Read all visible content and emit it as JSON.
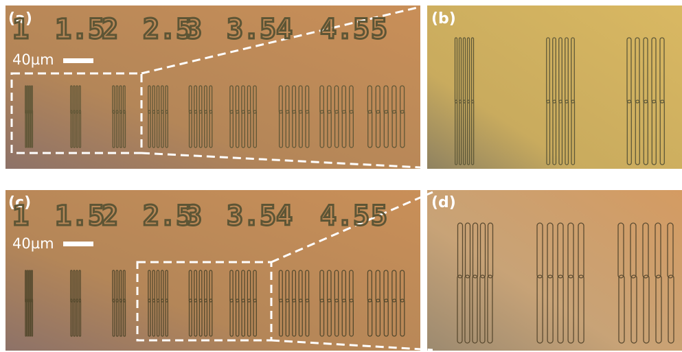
{
  "panels": [
    {
      "label": "(a)",
      "scale_bar": "40µm",
      "numbers": [
        "1",
        "1.5",
        "2",
        "2.5",
        "3",
        "3.5",
        "4",
        "4.5",
        "5"
      ]
    },
    {
      "label": "(b)"
    },
    {
      "label": "(c)",
      "scale_bar": "40µm",
      "numbers": [
        "1",
        "1.5",
        "2",
        "2.5",
        "3",
        "3.5",
        "4",
        "4.5",
        "5"
      ]
    },
    {
      "label": "(d)"
    }
  ]
}
